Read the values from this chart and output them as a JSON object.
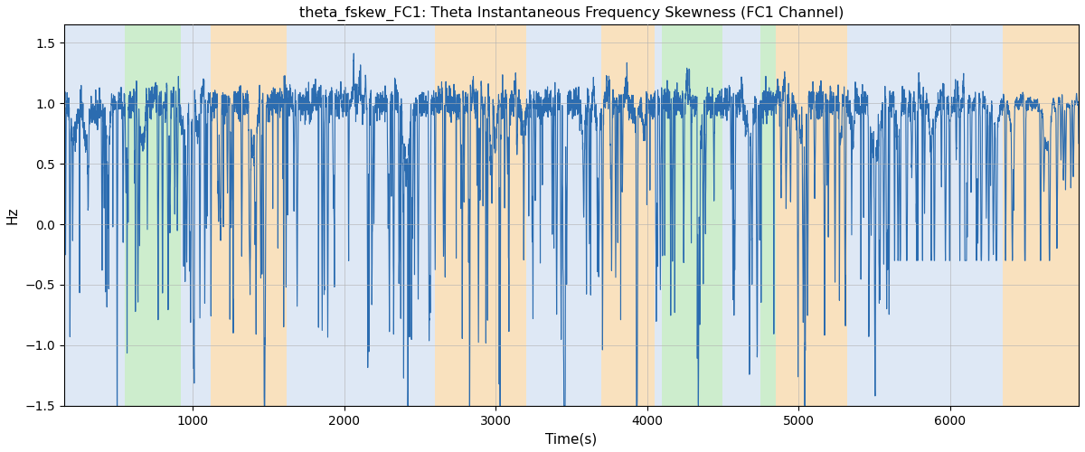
{
  "title": "theta_fskew_FC1: Theta Instantaneous Frequency Skewness (FC1 Channel)",
  "xlabel": "Time(s)",
  "ylabel": "Hz",
  "ylim": [
    -1.5,
    1.65
  ],
  "xlim": [
    150,
    6850
  ],
  "line_color": "#2b6cb0",
  "line_width": 0.8,
  "bg_color": "#ffffff",
  "grid_color": "#b0b0b0",
  "bands": [
    {
      "start": 150,
      "end": 550,
      "color": "#aec6e8",
      "alpha": 0.4
    },
    {
      "start": 550,
      "end": 920,
      "color": "#90d890",
      "alpha": 0.45
    },
    {
      "start": 920,
      "end": 1120,
      "color": "#aec6e8",
      "alpha": 0.4
    },
    {
      "start": 1120,
      "end": 1620,
      "color": "#f5c98a",
      "alpha": 0.55
    },
    {
      "start": 1620,
      "end": 2600,
      "color": "#aec6e8",
      "alpha": 0.4
    },
    {
      "start": 2600,
      "end": 3200,
      "color": "#f5c98a",
      "alpha": 0.55
    },
    {
      "start": 3200,
      "end": 3700,
      "color": "#aec6e8",
      "alpha": 0.4
    },
    {
      "start": 3700,
      "end": 4050,
      "color": "#f5c98a",
      "alpha": 0.55
    },
    {
      "start": 4050,
      "end": 4100,
      "color": "#aec6e8",
      "alpha": 0.4
    },
    {
      "start": 4100,
      "end": 4500,
      "color": "#90d890",
      "alpha": 0.45
    },
    {
      "start": 4500,
      "end": 4750,
      "color": "#aec6e8",
      "alpha": 0.4
    },
    {
      "start": 4750,
      "end": 4850,
      "color": "#90d890",
      "alpha": 0.45
    },
    {
      "start": 4850,
      "end": 5320,
      "color": "#f5c98a",
      "alpha": 0.55
    },
    {
      "start": 5320,
      "end": 6350,
      "color": "#aec6e8",
      "alpha": 0.4
    },
    {
      "start": 6350,
      "end": 6850,
      "color": "#f5c98a",
      "alpha": 0.55
    }
  ],
  "seed": 42,
  "n_points": 6700,
  "t_start": 150,
  "t_end": 6850
}
